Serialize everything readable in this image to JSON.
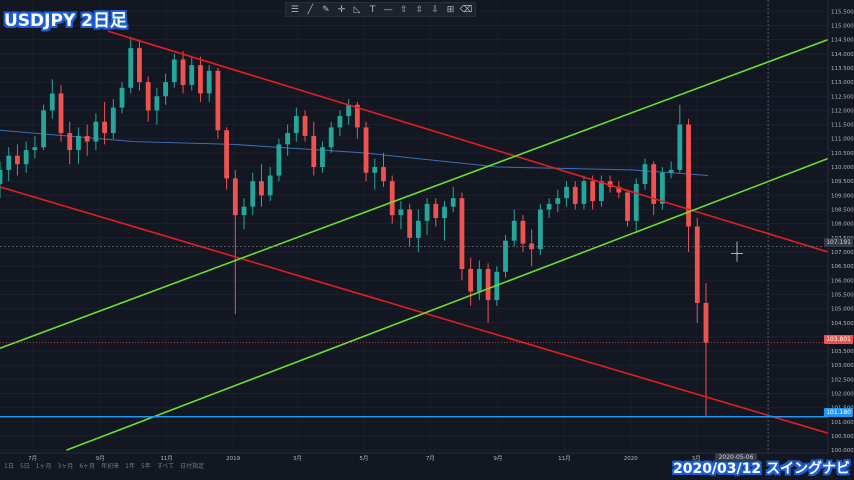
{
  "title": "USDJPY 2日足",
  "footer": "2020/03/12 スイングナビ",
  "toolbar": {
    "tools": [
      {
        "icon": "hamburger-icon",
        "glyph": "☰"
      },
      {
        "icon": "trend-line-icon",
        "glyph": "╱"
      },
      {
        "icon": "brush-icon",
        "glyph": "✎"
      },
      {
        "icon": "crosshair-icon",
        "glyph": "✛"
      },
      {
        "icon": "fib-icon",
        "glyph": "◺"
      },
      {
        "icon": "text-tool-icon",
        "glyph": "T"
      },
      {
        "icon": "horizontal-line-icon",
        "glyph": "—"
      },
      {
        "icon": "arrow-up-icon",
        "glyph": "⇧"
      },
      {
        "icon": "price-range-icon",
        "glyph": "⇳"
      },
      {
        "icon": "arrow-down-icon",
        "glyph": "⇩"
      },
      {
        "icon": "measure-icon",
        "glyph": "⊞"
      },
      {
        "icon": "eraser-icon",
        "glyph": "⌫"
      }
    ]
  },
  "timeframes": [
    "1日",
    "5日",
    "1ヶ月",
    "3ヶ月",
    "6ヶ月",
    "年初来",
    "1年",
    "5年",
    "すべて",
    "日付指定"
  ],
  "chart_data": {
    "type": "candlestick",
    "symbol": "USDJPY",
    "interval": "2日足",
    "ylim": [
      99.9,
      115.9
    ],
    "y_ticks": [
      "100.000",
      "100.500",
      "101.000",
      "101.500",
      "102.000",
      "102.500",
      "103.000",
      "103.500",
      "104.000",
      "104.500",
      "105.000",
      "105.500",
      "106.000",
      "106.500",
      "107.000",
      "107.500",
      "108.000",
      "108.500",
      "109.000",
      "109.500",
      "110.000",
      "110.500",
      "111.000",
      "111.500",
      "112.000",
      "112.500",
      "113.000",
      "113.500",
      "114.000",
      "114.500",
      "115.000",
      "115.500"
    ],
    "x_labels": [
      "7月",
      "9月",
      "11月",
      "2019",
      "3月",
      "5月",
      "7月",
      "9月",
      "11月",
      "2020",
      "3月"
    ],
    "x_label_positions": [
      "2018-07-01",
      "2018-09-01",
      "2018-11-01",
      "2019-01-01",
      "2019-03-01",
      "2019-05-01",
      "2019-07-01",
      "2019-09-01",
      "2019-11-01",
      "2020-01-01",
      "2020-03-01"
    ],
    "crosshair_date": "2020-05-06",
    "crosshair_price": "107.191",
    "last_price": "103.801",
    "support_price": "101.180",
    "colors": {
      "up": "#26a69a",
      "down": "#ef5350",
      "red_line": "#e51c23",
      "green_line": "#6cdc2f",
      "blue_line": "#2196f3",
      "ma": "#3b6fb6",
      "background": "#131722"
    },
    "ma_line": [
      {
        "date": "2018-06-01",
        "value": 111.3
      },
      {
        "date": "2018-10-01",
        "value": 110.9
      },
      {
        "date": "2019-01-01",
        "value": 110.8
      },
      {
        "date": "2019-05-01",
        "value": 110.5
      },
      {
        "date": "2019-09-01",
        "value": 110.0
      },
      {
        "date": "2020-01-01",
        "value": 109.9
      },
      {
        "date": "2020-03-12",
        "value": 109.7
      }
    ],
    "trend_lines": [
      {
        "name": "red-channel-upper",
        "color": "red",
        "points": [
          {
            "date": "2018-09-08",
            "value": 114.8
          },
          {
            "date": "2020-06-30",
            "value": 107.0
          }
        ]
      },
      {
        "name": "red-channel-lower",
        "color": "red",
        "points": [
          {
            "date": "2018-06-01",
            "value": 109.3
          },
          {
            "date": "2020-06-30",
            "value": 100.6
          }
        ]
      },
      {
        "name": "green-channel-upper",
        "color": "green",
        "points": [
          {
            "date": "2018-06-01",
            "value": 103.6
          },
          {
            "date": "2020-06-30",
            "value": 114.5
          }
        ]
      },
      {
        "name": "green-channel-lower",
        "color": "green",
        "points": [
          {
            "date": "2018-08-01",
            "value": 100.0
          },
          {
            "date": "2020-06-30",
            "value": 110.3
          }
        ]
      }
    ],
    "candles": [
      {
        "date": "2018-06-01",
        "o": 109.4,
        "h": 110.2,
        "l": 108.9,
        "c": 109.9
      },
      {
        "date": "2018-06-09",
        "o": 109.9,
        "h": 110.7,
        "l": 109.5,
        "c": 110.4
      },
      {
        "date": "2018-06-17",
        "o": 110.4,
        "h": 110.8,
        "l": 109.7,
        "c": 110.1
      },
      {
        "date": "2018-06-25",
        "o": 110.1,
        "h": 110.9,
        "l": 109.8,
        "c": 110.6
      },
      {
        "date": "2018-07-03",
        "o": 110.6,
        "h": 111.1,
        "l": 110.3,
        "c": 110.7
      },
      {
        "date": "2018-07-11",
        "o": 110.7,
        "h": 112.2,
        "l": 110.6,
        "c": 112.0
      },
      {
        "date": "2018-07-19",
        "o": 112.0,
        "h": 113.1,
        "l": 111.7,
        "c": 112.6
      },
      {
        "date": "2018-07-27",
        "o": 112.6,
        "h": 112.9,
        "l": 110.9,
        "c": 111.2
      },
      {
        "date": "2018-08-04",
        "o": 111.2,
        "h": 111.6,
        "l": 110.1,
        "c": 110.6
      },
      {
        "date": "2018-08-12",
        "o": 110.6,
        "h": 111.4,
        "l": 110.1,
        "c": 111.1
      },
      {
        "date": "2018-08-20",
        "o": 111.1,
        "h": 111.5,
        "l": 110.4,
        "c": 110.9
      },
      {
        "date": "2018-08-28",
        "o": 110.9,
        "h": 111.9,
        "l": 110.6,
        "c": 111.6
      },
      {
        "date": "2018-09-05",
        "o": 111.6,
        "h": 112.3,
        "l": 110.8,
        "c": 111.2
      },
      {
        "date": "2018-09-13",
        "o": 111.2,
        "h": 112.4,
        "l": 111.0,
        "c": 112.1
      },
      {
        "date": "2018-09-21",
        "o": 112.1,
        "h": 113.0,
        "l": 111.9,
        "c": 112.8
      },
      {
        "date": "2018-09-29",
        "o": 112.8,
        "h": 114.6,
        "l": 112.6,
        "c": 114.2
      },
      {
        "date": "2018-10-07",
        "o": 114.2,
        "h": 114.5,
        "l": 112.7,
        "c": 113.0
      },
      {
        "date": "2018-10-15",
        "o": 113.0,
        "h": 113.2,
        "l": 111.6,
        "c": 112.0
      },
      {
        "date": "2018-10-23",
        "o": 112.0,
        "h": 112.8,
        "l": 111.5,
        "c": 112.5
      },
      {
        "date": "2018-10-31",
        "o": 112.5,
        "h": 113.3,
        "l": 112.2,
        "c": 113.0
      },
      {
        "date": "2018-11-08",
        "o": 113.0,
        "h": 114.0,
        "l": 112.8,
        "c": 113.8
      },
      {
        "date": "2018-11-16",
        "o": 113.8,
        "h": 114.1,
        "l": 112.6,
        "c": 112.9
      },
      {
        "date": "2018-11-24",
        "o": 112.9,
        "h": 113.9,
        "l": 112.7,
        "c": 113.6
      },
      {
        "date": "2018-12-02",
        "o": 113.6,
        "h": 113.9,
        "l": 112.3,
        "c": 112.6
      },
      {
        "date": "2018-12-10",
        "o": 112.6,
        "h": 113.6,
        "l": 112.3,
        "c": 113.4
      },
      {
        "date": "2018-12-18",
        "o": 113.4,
        "h": 113.5,
        "l": 111.0,
        "c": 111.3
      },
      {
        "date": "2018-12-26",
        "o": 111.3,
        "h": 111.4,
        "l": 109.2,
        "c": 109.6
      },
      {
        "date": "2019-01-03",
        "o": 109.6,
        "h": 109.9,
        "l": 104.8,
        "c": 108.3
      },
      {
        "date": "2019-01-11",
        "o": 108.3,
        "h": 108.9,
        "l": 107.8,
        "c": 108.6
      },
      {
        "date": "2019-01-19",
        "o": 108.6,
        "h": 109.8,
        "l": 108.3,
        "c": 109.5
      },
      {
        "date": "2019-01-27",
        "o": 109.5,
        "h": 110.1,
        "l": 108.6,
        "c": 109.0
      },
      {
        "date": "2019-02-04",
        "o": 109.0,
        "h": 110.0,
        "l": 108.8,
        "c": 109.7
      },
      {
        "date": "2019-02-12",
        "o": 109.7,
        "h": 111.0,
        "l": 109.5,
        "c": 110.8
      },
      {
        "date": "2019-02-20",
        "o": 110.8,
        "h": 111.5,
        "l": 110.4,
        "c": 111.2
      },
      {
        "date": "2019-02-28",
        "o": 111.2,
        "h": 112.1,
        "l": 110.9,
        "c": 111.8
      },
      {
        "date": "2019-03-08",
        "o": 111.8,
        "h": 112.0,
        "l": 110.9,
        "c": 111.1
      },
      {
        "date": "2019-03-16",
        "o": 111.1,
        "h": 111.6,
        "l": 109.7,
        "c": 110.0
      },
      {
        "date": "2019-03-24",
        "o": 110.0,
        "h": 110.9,
        "l": 109.8,
        "c": 110.7
      },
      {
        "date": "2019-04-01",
        "o": 110.7,
        "h": 111.6,
        "l": 110.5,
        "c": 111.4
      },
      {
        "date": "2019-04-09",
        "o": 111.4,
        "h": 112.0,
        "l": 111.1,
        "c": 111.8
      },
      {
        "date": "2019-04-17",
        "o": 111.8,
        "h": 112.4,
        "l": 111.5,
        "c": 112.2
      },
      {
        "date": "2019-04-25",
        "o": 112.2,
        "h": 112.3,
        "l": 111.0,
        "c": 111.4
      },
      {
        "date": "2019-05-03",
        "o": 111.4,
        "h": 111.6,
        "l": 109.5,
        "c": 109.8
      },
      {
        "date": "2019-05-11",
        "o": 109.8,
        "h": 110.3,
        "l": 109.2,
        "c": 110.0
      },
      {
        "date": "2019-05-19",
        "o": 110.0,
        "h": 110.5,
        "l": 109.3,
        "c": 109.5
      },
      {
        "date": "2019-05-27",
        "o": 109.5,
        "h": 109.7,
        "l": 108.0,
        "c": 108.3
      },
      {
        "date": "2019-06-04",
        "o": 108.3,
        "h": 108.8,
        "l": 107.8,
        "c": 108.5
      },
      {
        "date": "2019-06-12",
        "o": 108.5,
        "h": 108.7,
        "l": 107.2,
        "c": 107.5
      },
      {
        "date": "2019-06-20",
        "o": 107.5,
        "h": 108.5,
        "l": 107.0,
        "c": 108.1
      },
      {
        "date": "2019-06-28",
        "o": 108.1,
        "h": 108.9,
        "l": 107.6,
        "c": 108.7
      },
      {
        "date": "2019-07-06",
        "o": 108.7,
        "h": 108.9,
        "l": 107.9,
        "c": 108.2
      },
      {
        "date": "2019-07-14",
        "o": 108.2,
        "h": 108.8,
        "l": 107.4,
        "c": 108.6
      },
      {
        "date": "2019-07-22",
        "o": 108.6,
        "h": 109.3,
        "l": 108.4,
        "c": 108.9
      },
      {
        "date": "2019-07-30",
        "o": 108.9,
        "h": 109.1,
        "l": 106.0,
        "c": 106.4
      },
      {
        "date": "2019-08-07",
        "o": 106.4,
        "h": 106.8,
        "l": 105.1,
        "c": 105.6
      },
      {
        "date": "2019-08-15",
        "o": 105.6,
        "h": 106.7,
        "l": 105.3,
        "c": 106.4
      },
      {
        "date": "2019-08-23",
        "o": 106.4,
        "h": 106.6,
        "l": 104.5,
        "c": 105.3
      },
      {
        "date": "2019-08-31",
        "o": 105.3,
        "h": 106.5,
        "l": 105.1,
        "c": 106.3
      },
      {
        "date": "2019-09-08",
        "o": 106.3,
        "h": 107.6,
        "l": 106.1,
        "c": 107.4
      },
      {
        "date": "2019-09-16",
        "o": 107.4,
        "h": 108.5,
        "l": 107.2,
        "c": 108.1
      },
      {
        "date": "2019-09-24",
        "o": 108.1,
        "h": 108.3,
        "l": 107.0,
        "c": 107.3
      },
      {
        "date": "2019-10-02",
        "o": 107.3,
        "h": 107.8,
        "l": 106.5,
        "c": 107.1
      },
      {
        "date": "2019-10-10",
        "o": 107.1,
        "h": 108.7,
        "l": 106.9,
        "c": 108.5
      },
      {
        "date": "2019-10-18",
        "o": 108.5,
        "h": 108.9,
        "l": 108.2,
        "c": 108.7
      },
      {
        "date": "2019-10-26",
        "o": 108.7,
        "h": 109.2,
        "l": 108.4,
        "c": 108.9
      },
      {
        "date": "2019-11-03",
        "o": 108.9,
        "h": 109.5,
        "l": 108.6,
        "c": 109.3
      },
      {
        "date": "2019-11-11",
        "o": 109.3,
        "h": 109.5,
        "l": 108.5,
        "c": 108.7
      },
      {
        "date": "2019-11-19",
        "o": 108.7,
        "h": 109.7,
        "l": 108.5,
        "c": 109.5
      },
      {
        "date": "2019-11-27",
        "o": 109.5,
        "h": 109.7,
        "l": 108.5,
        "c": 108.8
      },
      {
        "date": "2019-12-05",
        "o": 108.8,
        "h": 109.7,
        "l": 108.6,
        "c": 109.5
      },
      {
        "date": "2019-12-13",
        "o": 109.5,
        "h": 109.7,
        "l": 109.1,
        "c": 109.3
      },
      {
        "date": "2019-12-21",
        "o": 109.3,
        "h": 109.5,
        "l": 108.9,
        "c": 109.1
      },
      {
        "date": "2019-12-29",
        "o": 109.1,
        "h": 109.2,
        "l": 107.9,
        "c": 108.1
      },
      {
        "date": "2020-01-06",
        "o": 108.1,
        "h": 109.6,
        "l": 107.7,
        "c": 109.4
      },
      {
        "date": "2020-01-14",
        "o": 109.4,
        "h": 110.3,
        "l": 109.2,
        "c": 110.1
      },
      {
        "date": "2020-01-22",
        "o": 110.1,
        "h": 110.2,
        "l": 108.3,
        "c": 108.7
      },
      {
        "date": "2020-01-30",
        "o": 108.7,
        "h": 110.0,
        "l": 108.5,
        "c": 109.8
      },
      {
        "date": "2020-02-07",
        "o": 109.8,
        "h": 110.2,
        "l": 109.6,
        "c": 109.9
      },
      {
        "date": "2020-02-15",
        "o": 109.9,
        "h": 112.2,
        "l": 109.8,
        "c": 111.5
      },
      {
        "date": "2020-02-23",
        "o": 111.5,
        "h": 111.7,
        "l": 107.0,
        "c": 107.9
      },
      {
        "date": "2020-03-02",
        "o": 107.9,
        "h": 108.2,
        "l": 104.5,
        "c": 105.2
      },
      {
        "date": "2020-03-10",
        "o": 105.2,
        "h": 105.9,
        "l": 101.2,
        "c": 103.8
      }
    ]
  }
}
